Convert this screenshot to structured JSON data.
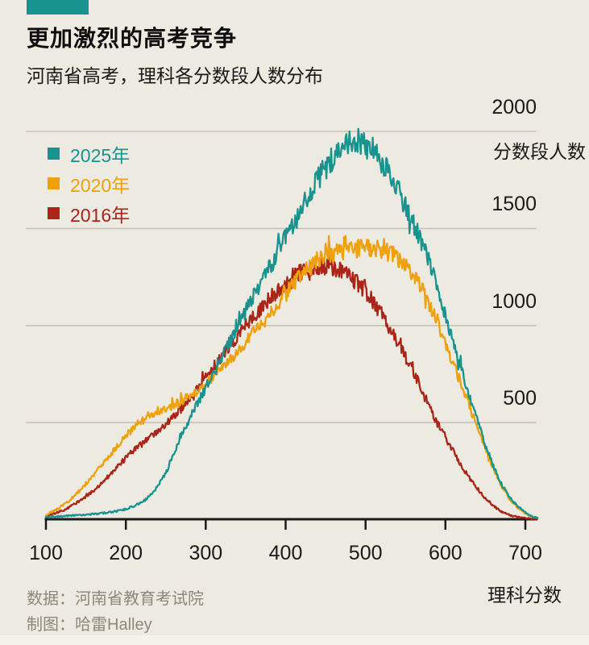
{
  "colors": {
    "background": "#edeae1",
    "accent_teal": "#18938e",
    "orange": "#efa10a",
    "dark_red": "#ab2418",
    "gridline": "#c6c2b5",
    "axis": "#1a1a1a",
    "muted_text": "#8c887b"
  },
  "header": {
    "title": "更加激烈的高考竞争",
    "subtitle": "河南省高考，理科各分数段人数分布"
  },
  "footer": {
    "source": "数据：河南省教育考试院",
    "credit": "制图：哈雷Halley"
  },
  "chart_data": {
    "type": "line",
    "title": "更加激烈的高考竞争",
    "subtitle": "河南省高考，理科各分数段人数分布",
    "xlabel": "理科分数",
    "ylabel": "分数段人数",
    "x_ticks": [
      100,
      200,
      300,
      400,
      500,
      600,
      700
    ],
    "y_gridlines": [
      500,
      1000,
      1500,
      2000
    ],
    "xlim": [
      100,
      715
    ],
    "ylim": [
      0,
      2060
    ],
    "legend_position": "top-left",
    "grid": true,
    "series": [
      {
        "name": "2025年",
        "color": "#18938e",
        "points": [
          [
            100,
            15
          ],
          [
            115,
            15
          ],
          [
            130,
            20
          ],
          [
            145,
            25
          ],
          [
            160,
            28
          ],
          [
            175,
            35
          ],
          [
            190,
            45
          ],
          [
            200,
            55
          ],
          [
            210,
            70
          ],
          [
            220,
            90
          ],
          [
            230,
            120
          ],
          [
            240,
            170
          ],
          [
            250,
            240
          ],
          [
            260,
            340
          ],
          [
            270,
            440
          ],
          [
            280,
            520
          ],
          [
            290,
            600
          ],
          [
            300,
            680
          ],
          [
            310,
            750
          ],
          [
            320,
            830
          ],
          [
            330,
            915
          ],
          [
            340,
            1000
          ],
          [
            350,
            1075
          ],
          [
            360,
            1150
          ],
          [
            370,
            1225
          ],
          [
            380,
            1300
          ],
          [
            390,
            1375
          ],
          [
            400,
            1450
          ],
          [
            410,
            1525
          ],
          [
            420,
            1600
          ],
          [
            430,
            1680
          ],
          [
            440,
            1750
          ],
          [
            450,
            1815
          ],
          [
            460,
            1870
          ],
          [
            470,
            1920
          ],
          [
            480,
            1950
          ],
          [
            490,
            1955
          ],
          [
            500,
            1930
          ],
          [
            510,
            1900
          ],
          [
            520,
            1855
          ],
          [
            530,
            1780
          ],
          [
            540,
            1700
          ],
          [
            550,
            1620
          ],
          [
            560,
            1530
          ],
          [
            570,
            1430
          ],
          [
            580,
            1320
          ],
          [
            590,
            1190
          ],
          [
            600,
            1050
          ],
          [
            610,
            915
          ],
          [
            620,
            780
          ],
          [
            630,
            640
          ],
          [
            640,
            505
          ],
          [
            650,
            385
          ],
          [
            660,
            275
          ],
          [
            670,
            185
          ],
          [
            680,
            115
          ],
          [
            690,
            70
          ],
          [
            700,
            38
          ],
          [
            708,
            18
          ],
          [
            715,
            8
          ]
        ]
      },
      {
        "name": "2020年",
        "color": "#efa10a",
        "points": [
          [
            100,
            25
          ],
          [
            110,
            45
          ],
          [
            120,
            70
          ],
          [
            130,
            100
          ],
          [
            140,
            140
          ],
          [
            150,
            185
          ],
          [
            160,
            230
          ],
          [
            170,
            280
          ],
          [
            180,
            330
          ],
          [
            190,
            380
          ],
          [
            200,
            430
          ],
          [
            210,
            475
          ],
          [
            215,
            500
          ],
          [
            220,
            515
          ],
          [
            230,
            540
          ],
          [
            240,
            560
          ],
          [
            250,
            575
          ],
          [
            260,
            590
          ],
          [
            270,
            610
          ],
          [
            280,
            635
          ],
          [
            290,
            665
          ],
          [
            300,
            700
          ],
          [
            310,
            740
          ],
          [
            320,
            780
          ],
          [
            330,
            825
          ],
          [
            340,
            870
          ],
          [
            350,
            915
          ],
          [
            360,
            960
          ],
          [
            370,
            1010
          ],
          [
            380,
            1060
          ],
          [
            390,
            1110
          ],
          [
            400,
            1160
          ],
          [
            410,
            1210
          ],
          [
            420,
            1255
          ],
          [
            430,
            1300
          ],
          [
            440,
            1335
          ],
          [
            450,
            1360
          ],
          [
            460,
            1380
          ],
          [
            470,
            1385
          ],
          [
            480,
            1390
          ],
          [
            490,
            1395
          ],
          [
            500,
            1400
          ],
          [
            510,
            1395
          ],
          [
            520,
            1390
          ],
          [
            530,
            1375
          ],
          [
            540,
            1350
          ],
          [
            550,
            1310
          ],
          [
            560,
            1255
          ],
          [
            570,
            1185
          ],
          [
            580,
            1105
          ],
          [
            590,
            1010
          ],
          [
            600,
            910
          ],
          [
            610,
            805
          ],
          [
            620,
            695
          ],
          [
            630,
            585
          ],
          [
            640,
            475
          ],
          [
            650,
            365
          ],
          [
            660,
            260
          ],
          [
            670,
            175
          ],
          [
            680,
            108
          ],
          [
            690,
            62
          ],
          [
            700,
            32
          ],
          [
            708,
            16
          ],
          [
            715,
            8
          ]
        ]
      },
      {
        "name": "2016年",
        "color": "#ab2418",
        "points": [
          [
            100,
            18
          ],
          [
            110,
            30
          ],
          [
            120,
            45
          ],
          [
            130,
            65
          ],
          [
            140,
            90
          ],
          [
            150,
            120
          ],
          [
            160,
            150
          ],
          [
            170,
            190
          ],
          [
            180,
            230
          ],
          [
            190,
            275
          ],
          [
            200,
            320
          ],
          [
            210,
            355
          ],
          [
            220,
            390
          ],
          [
            230,
            425
          ],
          [
            240,
            460
          ],
          [
            250,
            495
          ],
          [
            260,
            530
          ],
          [
            270,
            575
          ],
          [
            280,
            620
          ],
          [
            290,
            675
          ],
          [
            300,
            730
          ],
          [
            310,
            785
          ],
          [
            320,
            840
          ],
          [
            330,
            895
          ],
          [
            340,
            950
          ],
          [
            350,
            1000
          ],
          [
            360,
            1050
          ],
          [
            370,
            1095
          ],
          [
            380,
            1140
          ],
          [
            390,
            1180
          ],
          [
            400,
            1220
          ],
          [
            410,
            1255
          ],
          [
            420,
            1280
          ],
          [
            430,
            1300
          ],
          [
            440,
            1310
          ],
          [
            450,
            1315
          ],
          [
            460,
            1300
          ],
          [
            470,
            1280
          ],
          [
            480,
            1255
          ],
          [
            490,
            1220
          ],
          [
            500,
            1180
          ],
          [
            510,
            1120
          ],
          [
            520,
            1060
          ],
          [
            530,
            990
          ],
          [
            540,
            920
          ],
          [
            550,
            840
          ],
          [
            560,
            760
          ],
          [
            570,
            670
          ],
          [
            580,
            580
          ],
          [
            590,
            495
          ],
          [
            600,
            425
          ],
          [
            610,
            350
          ],
          [
            620,
            280
          ],
          [
            630,
            215
          ],
          [
            640,
            160
          ],
          [
            650,
            110
          ],
          [
            660,
            70
          ],
          [
            670,
            42
          ],
          [
            680,
            24
          ],
          [
            690,
            13
          ],
          [
            700,
            7
          ],
          [
            708,
            4
          ],
          [
            715,
            3
          ]
        ]
      }
    ]
  }
}
